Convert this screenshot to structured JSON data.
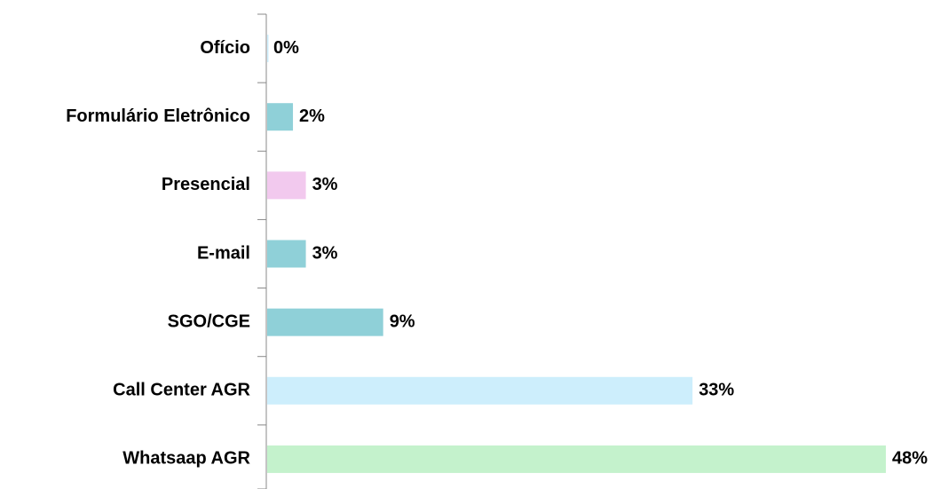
{
  "chart_data": {
    "type": "bar",
    "orientation": "horizontal",
    "categories": [
      "Ofício",
      "Formulário Eletrônico",
      "Presencial",
      "E-mail",
      "SGO/CGE",
      "Call Center AGR",
      "Whatsaap AGR"
    ],
    "values": [
      0,
      2,
      3,
      3,
      9,
      33,
      48
    ],
    "value_labels": [
      "0%",
      "2%",
      "3%",
      "3%",
      "9%",
      "33%",
      "48%"
    ],
    "colors": [
      "#cdeefc",
      "#8fd0d8",
      "#f2c9ee",
      "#8fd0d8",
      "#8fd0d8",
      "#cdeefc",
      "#c4f2cc"
    ],
    "xlim": [
      0,
      48
    ]
  }
}
